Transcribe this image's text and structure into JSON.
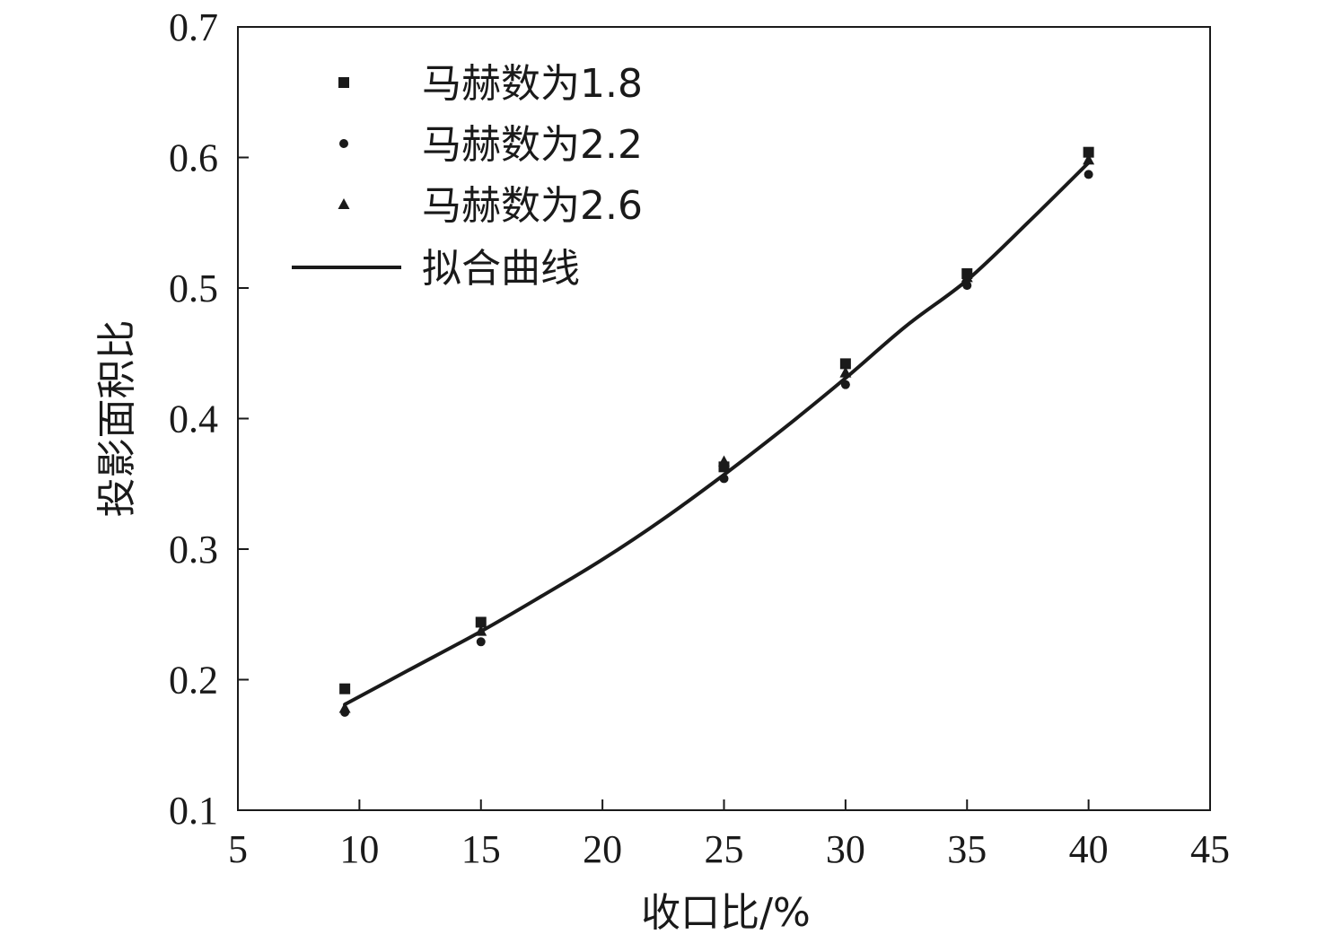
{
  "chart_data": {
    "type": "scatter",
    "title": "",
    "xlabel": "收口比/%",
    "ylabel": "投影面积比",
    "xlim": [
      5,
      45
    ],
    "ylim": [
      0.1,
      0.7
    ],
    "xticks": [
      5,
      10,
      15,
      20,
      25,
      30,
      35,
      40,
      45
    ],
    "yticks": [
      0.1,
      0.2,
      0.3,
      0.4,
      0.5,
      0.6,
      0.7
    ],
    "xtick_labels": [
      "5",
      "10",
      "15",
      "20",
      "25",
      "30",
      "35",
      "40",
      "45"
    ],
    "ytick_labels": [
      "0.1",
      "0.2",
      "0.3",
      "0.4",
      "0.5",
      "0.6",
      "0.7"
    ],
    "grid": false,
    "legend_position": "top-left",
    "colors": {
      "ink": "#1a1a1a"
    },
    "series": [
      {
        "name": "马赫数为1.8",
        "marker": "square",
        "x": [
          9.4,
          15,
          25,
          30,
          35,
          40
        ],
        "y": [
          0.193,
          0.244,
          0.363,
          0.442,
          0.511,
          0.604
        ]
      },
      {
        "name": "马赫数为2.2",
        "marker": "circle",
        "x": [
          9.4,
          15,
          25,
          30,
          35,
          40
        ],
        "y": [
          0.175,
          0.229,
          0.354,
          0.426,
          0.502,
          0.587
        ]
      },
      {
        "name": "马赫数为2.6",
        "marker": "triangle",
        "x": [
          9.4,
          15,
          25,
          30,
          35,
          40
        ],
        "y": [
          0.178,
          0.237,
          0.367,
          0.435,
          0.508,
          0.598
        ]
      }
    ],
    "fit": {
      "name": "拟合曲线",
      "type": "line",
      "x": [
        9.4,
        12,
        15,
        17.5,
        20,
        22.5,
        25,
        27.5,
        30,
        32.5,
        35,
        37.5,
        40
      ],
      "y": [
        0.181,
        0.207,
        0.237,
        0.264,
        0.292,
        0.323,
        0.357,
        0.393,
        0.431,
        0.471,
        0.506,
        0.55,
        0.596
      ]
    }
  }
}
